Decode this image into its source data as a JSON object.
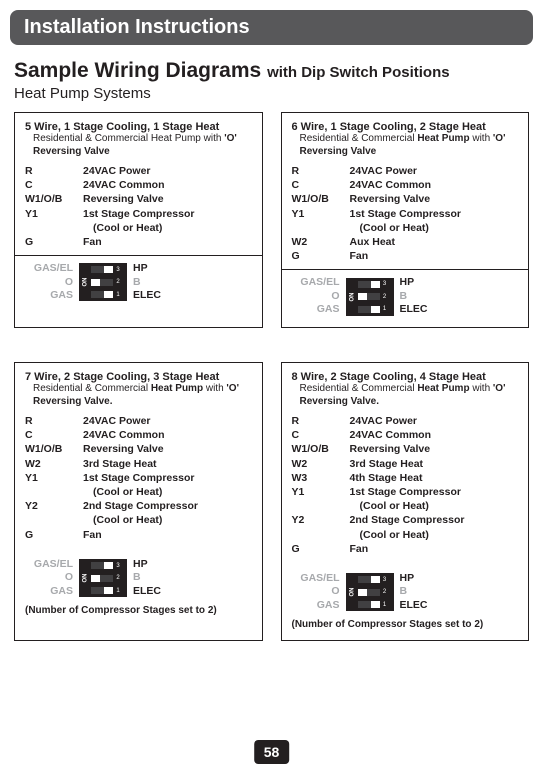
{
  "header": "Installation Instructions",
  "section_title_main": "Sample Wiring Diagrams",
  "section_title_sub": "with Dip Switch Positions",
  "subtitle": "Heat Pump Systems",
  "page_number": "58",
  "dip_left_labels": {
    "l1": "GAS/EL",
    "l2": "O",
    "l3": "GAS"
  },
  "dip_right_labels": {
    "r1": "HP",
    "r2": "B",
    "r3": "ELEC"
  },
  "compressor_note": "(Number of Compressor Stages set to 2)",
  "boxes": [
    {
      "title": "5 Wire, 1 Stage Cooling, 1 Stage Heat",
      "desc_pre": "Residential & Commercial Heat Pump with ",
      "desc_rv": "'O' Reversing Valve",
      "wires": [
        {
          "label": "R",
          "desc": "24VAC Power"
        },
        {
          "label": "C",
          "desc": "24VAC Common"
        },
        {
          "label": "W1/O/B",
          "desc": "Reversing Valve"
        },
        {
          "label": "Y1",
          "desc": "1st Stage Compressor"
        },
        {
          "label": "",
          "desc": "(Cool or Heat)",
          "indent": true
        },
        {
          "label": "G",
          "desc": "Fan"
        }
      ],
      "dips": [
        "right",
        "left",
        "right"
      ],
      "has_divider": true,
      "has_note": false
    },
    {
      "title": "6 Wire, 1 Stage Cooling, 2 Stage Heat",
      "desc_pre": "Residential & Commercial ",
      "desc_hp": "Heat Pump",
      "desc_post": " with ",
      "desc_rv": "'O' Reversing Valve",
      "wires": [
        {
          "label": "R",
          "desc": "24VAC Power"
        },
        {
          "label": "C",
          "desc": "24VAC Common"
        },
        {
          "label": "W1/O/B",
          "desc": "Reversing Valve"
        },
        {
          "label": "Y1",
          "desc": "1st Stage Compressor"
        },
        {
          "label": "",
          "desc": "(Cool or Heat)",
          "indent": true
        },
        {
          "label": "W2",
          "desc": "Aux Heat"
        },
        {
          "label": "G",
          "desc": "Fan"
        }
      ],
      "dips": [
        "right",
        "left",
        "right"
      ],
      "has_divider": true,
      "has_note": false
    },
    {
      "title": "7 Wire, 2 Stage Cooling, 3 Stage Heat",
      "desc_pre": "Residential & Commercial ",
      "desc_hp": "Heat Pump",
      "desc_post": " with ",
      "desc_rv": "'O' Reversing Valve.",
      "wires": [
        {
          "label": "R",
          "desc": "24VAC Power"
        },
        {
          "label": "C",
          "desc": "24VAC Common"
        },
        {
          "label": "W1/O/B",
          "desc": "Reversing Valve"
        },
        {
          "label": "W2",
          "desc": "3rd Stage Heat"
        },
        {
          "label": "Y1",
          "desc": "1st Stage Compressor"
        },
        {
          "label": "",
          "desc": "(Cool or Heat)",
          "indent": true
        },
        {
          "label": "Y2",
          "desc": "2nd Stage Compressor"
        },
        {
          "label": "",
          "desc": "(Cool or Heat)",
          "indent": true
        },
        {
          "label": "G",
          "desc": "Fan"
        }
      ],
      "dips": [
        "right",
        "left",
        "right"
      ],
      "has_divider": false,
      "has_note": true
    },
    {
      "title": "8 Wire, 2 Stage Cooling, 4 Stage Heat",
      "desc_pre": "Residential & Commercial ",
      "desc_hp": "Heat Pump",
      "desc_post": " with ",
      "desc_rv": "'O' Reversing Valve.",
      "wires": [
        {
          "label": "R",
          "desc": "24VAC Power"
        },
        {
          "label": "C",
          "desc": "24VAC Common"
        },
        {
          "label": "W1/O/B",
          "desc": "Reversing Valve"
        },
        {
          "label": "W2",
          "desc": " 3rd Stage Heat"
        },
        {
          "label": "W3",
          "desc": "4th Stage Heat"
        },
        {
          "label": "Y1",
          "desc": "1st Stage Compressor"
        },
        {
          "label": "",
          "desc": "(Cool or Heat)",
          "indent": true
        },
        {
          "label": "Y2",
          "desc": "2nd Stage Compressor"
        },
        {
          "label": "",
          "desc": "(Cool or Heat)",
          "indent": true
        },
        {
          "label": "G",
          "desc": "Fan"
        }
      ],
      "dips": [
        "right",
        "left",
        "right"
      ],
      "has_divider": false,
      "has_note": true
    }
  ]
}
